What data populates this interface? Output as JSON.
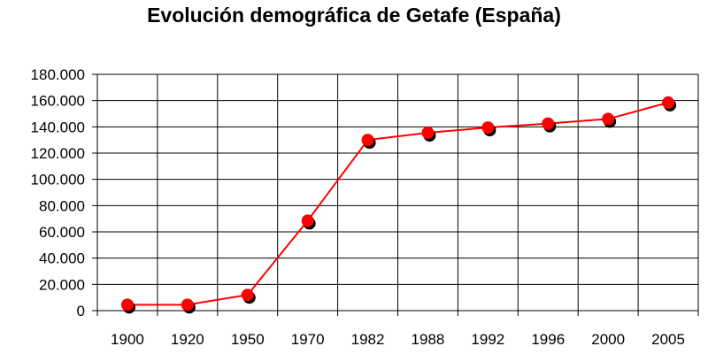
{
  "chart_data": {
    "type": "line",
    "title": "Evolución demográfica de Getafe (España)",
    "xlabel": "",
    "ylabel": "",
    "categories": [
      "1900",
      "1920",
      "1950",
      "1970",
      "1982",
      "1988",
      "1992",
      "1996",
      "2000",
      "2005"
    ],
    "series": [
      {
        "values": [
          4500,
          4500,
          12000,
          68500,
          130000,
          135500,
          139500,
          142500,
          146000,
          158500
        ]
      }
    ],
    "ylim": [
      0,
      180000
    ],
    "yticks": [
      0,
      20000,
      40000,
      60000,
      80000,
      100000,
      120000,
      140000,
      160000,
      180000
    ],
    "ytick_labels": [
      "0",
      "20.000",
      "40.000",
      "60.000",
      "80.000",
      "100.000",
      "120.000",
      "140.000",
      "160.000",
      "180.000"
    ],
    "grid": true,
    "legend": "none",
    "colors": {
      "line": "#ff0000",
      "marker": "#ff0000",
      "marker_shadow": "#000000",
      "grid": "#000000"
    }
  }
}
